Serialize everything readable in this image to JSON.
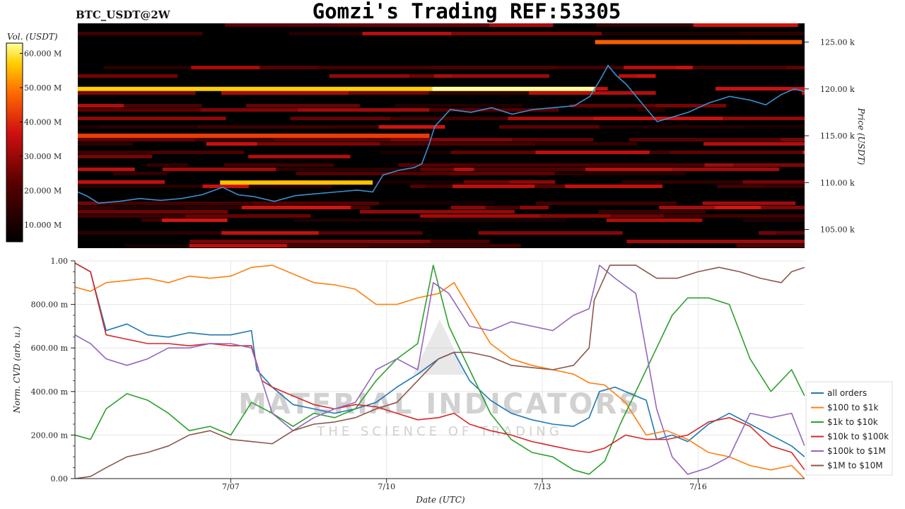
{
  "header": {
    "pair_label": "BTC_USDT@2W",
    "title": "Gomzi's Trading REF:53305"
  },
  "watermark": {
    "main": "MATERIAL INDICATORS",
    "sub": "THE SCIENCE OF TRADING"
  },
  "colors": {
    "background": "#000000",
    "price_line": "#3a8fd0",
    "grid": "#e6e6e6"
  },
  "chart_data": [
    {
      "type": "heatmap",
      "title": "BTC_USDT@2W",
      "ylabel": "Price (USDT)",
      "ylim": [
        103000,
        127000
      ],
      "y_ticks": [
        105000,
        110000,
        115000,
        120000,
        125000
      ],
      "y_tick_labels": [
        "105.00 k",
        "110.00 k",
        "115.00 k",
        "120.00 k",
        "125.00 k"
      ],
      "x_ticks": [
        "7/07",
        "7/10",
        "7/13",
        "7/16"
      ],
      "x_range_days": [
        4.0,
        18.05
      ],
      "x_tick_days": [
        7,
        10,
        13,
        16
      ],
      "colorbar": {
        "label": "Vol. (USDT)",
        "range": [
          5000000,
          63000000
        ],
        "ticks": [
          10000000,
          20000000,
          30000000,
          40000000,
          50000000,
          60000000
        ],
        "tick_labels": [
          "10.000 M",
          "20.000 M",
          "30.000 M",
          "40.000 M",
          "50.000 M",
          "60.000 M"
        ]
      },
      "walls": [
        {
          "price": 120000,
          "from_day": 4.0,
          "to_day": 10.85,
          "intensity": 0.9
        },
        {
          "price": 120000,
          "from_day": 10.85,
          "to_day": 14.0,
          "intensity": 1.0
        },
        {
          "price": 125000,
          "from_day": 14.0,
          "to_day": 18.0,
          "intensity": 0.72
        },
        {
          "price": 115000,
          "from_day": 4.0,
          "to_day": 10.8,
          "intensity": 0.65
        },
        {
          "price": 110000,
          "from_day": 6.75,
          "to_day": 9.7,
          "intensity": 0.88
        }
      ],
      "series": [
        {
          "name": "price",
          "x": [
            4.0,
            4.2,
            4.4,
            4.8,
            5.2,
            5.6,
            6.0,
            6.4,
            6.8,
            7.1,
            7.4,
            7.8,
            8.2,
            8.6,
            9.0,
            9.4,
            9.7,
            9.9,
            10.2,
            10.5,
            10.65,
            10.8,
            10.9,
            11.2,
            11.6,
            12.0,
            12.4,
            12.8,
            13.2,
            13.6,
            13.9,
            14.1,
            14.25,
            14.4,
            14.6,
            14.9,
            15.2,
            15.5,
            15.8,
            16.2,
            16.6,
            17.0,
            17.3,
            17.6,
            17.85,
            18.05
          ],
          "y": [
            109000,
            108500,
            107800,
            108000,
            108300,
            108100,
            108300,
            108700,
            109500,
            108700,
            108500,
            108000,
            108600,
            108800,
            109000,
            109200,
            109000,
            110800,
            111300,
            111600,
            112000,
            114200,
            116000,
            117800,
            117500,
            118000,
            117300,
            117800,
            118000,
            118200,
            119200,
            121000,
            122500,
            121500,
            120500,
            118500,
            116500,
            117000,
            117500,
            118500,
            119200,
            118800,
            118300,
            119400,
            120000,
            119700
          ]
        }
      ]
    },
    {
      "type": "line",
      "xlabel": "Date (UTC)",
      "ylabel": "Norm. CVD (arb. u.)",
      "ylim": [
        0,
        1
      ],
      "y_ticks": [
        0,
        0.2,
        0.4,
        0.6,
        0.8,
        1.0
      ],
      "y_tick_labels": [
        "0.00",
        "200.00 m",
        "400.00 m",
        "600.00 m",
        "800.00 m",
        "1.00"
      ],
      "x_ticks": [
        "7/07",
        "7/10",
        "7/13",
        "7/16"
      ],
      "x_range_days": [
        4.0,
        18.05
      ],
      "x_tick_days": [
        7,
        10,
        13,
        16
      ],
      "grid": true,
      "legend_position": "bottom-right",
      "series": [
        {
          "name": "all orders",
          "color": "#1f77b4",
          "x": [
            4.0,
            4.3,
            4.6,
            5.0,
            5.4,
            5.8,
            6.2,
            6.6,
            7.0,
            7.4,
            7.5,
            7.8,
            8.2,
            8.6,
            9.0,
            9.4,
            9.8,
            10.2,
            10.6,
            11.0,
            11.3,
            11.6,
            12.0,
            12.4,
            12.8,
            13.2,
            13.6,
            13.9,
            14.1,
            14.4,
            14.8,
            15.0,
            15.2,
            15.5,
            15.8,
            16.2,
            16.6,
            17.0,
            17.4,
            17.8,
            18.05
          ],
          "y": [
            0.99,
            0.95,
            0.68,
            0.71,
            0.66,
            0.65,
            0.67,
            0.66,
            0.66,
            0.68,
            0.5,
            0.42,
            0.34,
            0.32,
            0.3,
            0.32,
            0.35,
            0.42,
            0.48,
            0.55,
            0.58,
            0.45,
            0.36,
            0.3,
            0.27,
            0.25,
            0.24,
            0.28,
            0.4,
            0.42,
            0.38,
            0.36,
            0.18,
            0.2,
            0.17,
            0.25,
            0.3,
            0.25,
            0.2,
            0.15,
            0.1
          ]
        },
        {
          "name": "$100 to $1k",
          "color": "#ff7f0e",
          "x": [
            4.0,
            4.3,
            4.6,
            5.0,
            5.4,
            5.8,
            6.2,
            6.6,
            7.0,
            7.4,
            7.8,
            8.2,
            8.6,
            9.0,
            9.4,
            9.8,
            10.2,
            10.6,
            11.0,
            11.3,
            11.6,
            12.0,
            12.4,
            12.8,
            13.2,
            13.6,
            13.9,
            14.2,
            14.6,
            15.0,
            15.4,
            15.8,
            16.2,
            16.6,
            17.0,
            17.4,
            17.8,
            18.05
          ],
          "y": [
            0.88,
            0.86,
            0.9,
            0.91,
            0.92,
            0.9,
            0.93,
            0.92,
            0.93,
            0.97,
            0.98,
            0.94,
            0.9,
            0.89,
            0.87,
            0.8,
            0.8,
            0.83,
            0.85,
            0.9,
            0.78,
            0.62,
            0.55,
            0.52,
            0.5,
            0.48,
            0.44,
            0.43,
            0.35,
            0.2,
            0.22,
            0.18,
            0.12,
            0.1,
            0.06,
            0.04,
            0.06,
            0.0
          ]
        },
        {
          "name": "$1k to $10k",
          "color": "#2ca02c",
          "x": [
            4.0,
            4.3,
            4.6,
            5.0,
            5.4,
            5.8,
            6.2,
            6.6,
            7.0,
            7.4,
            7.8,
            8.2,
            8.6,
            9.0,
            9.4,
            9.8,
            10.2,
            10.6,
            10.9,
            11.2,
            11.6,
            12.0,
            12.4,
            12.8,
            13.2,
            13.6,
            13.9,
            14.2,
            14.5,
            14.8,
            15.2,
            15.5,
            15.8,
            16.2,
            16.6,
            17.0,
            17.4,
            17.8,
            18.05
          ],
          "y": [
            0.2,
            0.18,
            0.32,
            0.39,
            0.36,
            0.3,
            0.22,
            0.24,
            0.2,
            0.35,
            0.3,
            0.24,
            0.3,
            0.28,
            0.32,
            0.45,
            0.55,
            0.62,
            0.98,
            0.7,
            0.5,
            0.3,
            0.18,
            0.12,
            0.1,
            0.04,
            0.02,
            0.08,
            0.25,
            0.4,
            0.6,
            0.75,
            0.83,
            0.83,
            0.8,
            0.55,
            0.4,
            0.5,
            0.38
          ]
        },
        {
          "name": "$10k to $100k",
          "color": "#d62728",
          "x": [
            4.0,
            4.3,
            4.6,
            5.0,
            5.4,
            5.8,
            6.2,
            6.6,
            7.0,
            7.4,
            7.6,
            7.8,
            8.2,
            8.6,
            9.0,
            9.4,
            9.8,
            10.2,
            10.6,
            11.0,
            11.3,
            11.6,
            12.0,
            12.4,
            12.8,
            13.2,
            13.6,
            13.9,
            14.2,
            14.6,
            15.0,
            15.4,
            15.8,
            16.2,
            16.6,
            17.0,
            17.4,
            17.8,
            18.05
          ],
          "y": [
            0.99,
            0.95,
            0.66,
            0.64,
            0.62,
            0.62,
            0.61,
            0.62,
            0.61,
            0.61,
            0.45,
            0.42,
            0.38,
            0.34,
            0.32,
            0.34,
            0.33,
            0.3,
            0.27,
            0.28,
            0.3,
            0.25,
            0.22,
            0.2,
            0.17,
            0.15,
            0.13,
            0.12,
            0.14,
            0.2,
            0.18,
            0.18,
            0.2,
            0.26,
            0.28,
            0.24,
            0.15,
            0.12,
            0.04
          ]
        },
        {
          "name": "$100k to $1M",
          "color": "#9467bd",
          "x": [
            4.0,
            4.3,
            4.6,
            5.0,
            5.4,
            5.8,
            6.2,
            6.6,
            7.0,
            7.4,
            7.8,
            8.2,
            8.6,
            9.0,
            9.4,
            9.8,
            10.2,
            10.6,
            10.9,
            11.2,
            11.6,
            12.0,
            12.4,
            12.8,
            13.2,
            13.6,
            13.9,
            14.1,
            14.4,
            14.8,
            15.2,
            15.5,
            15.8,
            16.2,
            16.6,
            17.0,
            17.4,
            17.8,
            18.05
          ],
          "y": [
            0.66,
            0.62,
            0.55,
            0.52,
            0.55,
            0.6,
            0.6,
            0.62,
            0.62,
            0.6,
            0.3,
            0.22,
            0.28,
            0.32,
            0.35,
            0.5,
            0.55,
            0.5,
            0.9,
            0.85,
            0.7,
            0.68,
            0.72,
            0.7,
            0.68,
            0.75,
            0.78,
            0.98,
            0.92,
            0.85,
            0.32,
            0.1,
            0.02,
            0.05,
            0.1,
            0.3,
            0.28,
            0.3,
            0.15
          ]
        },
        {
          "name": "$1M to $10M",
          "color": "#8c564b",
          "x": [
            4.0,
            4.3,
            4.6,
            5.0,
            5.4,
            5.8,
            6.2,
            6.6,
            7.0,
            7.4,
            7.8,
            8.2,
            8.6,
            9.0,
            9.4,
            9.8,
            10.2,
            10.6,
            11.0,
            11.3,
            11.6,
            12.0,
            12.4,
            12.8,
            13.2,
            13.6,
            13.9,
            14.0,
            14.3,
            14.8,
            15.2,
            15.6,
            16.0,
            16.4,
            16.8,
            17.2,
            17.6,
            17.8,
            18.05
          ],
          "y": [
            0.0,
            0.01,
            0.05,
            0.1,
            0.12,
            0.15,
            0.2,
            0.22,
            0.18,
            0.17,
            0.16,
            0.22,
            0.25,
            0.26,
            0.28,
            0.32,
            0.35,
            0.45,
            0.55,
            0.58,
            0.58,
            0.56,
            0.52,
            0.51,
            0.5,
            0.52,
            0.6,
            0.82,
            0.98,
            0.98,
            0.92,
            0.92,
            0.95,
            0.97,
            0.95,
            0.92,
            0.9,
            0.95,
            0.97
          ]
        }
      ]
    }
  ]
}
